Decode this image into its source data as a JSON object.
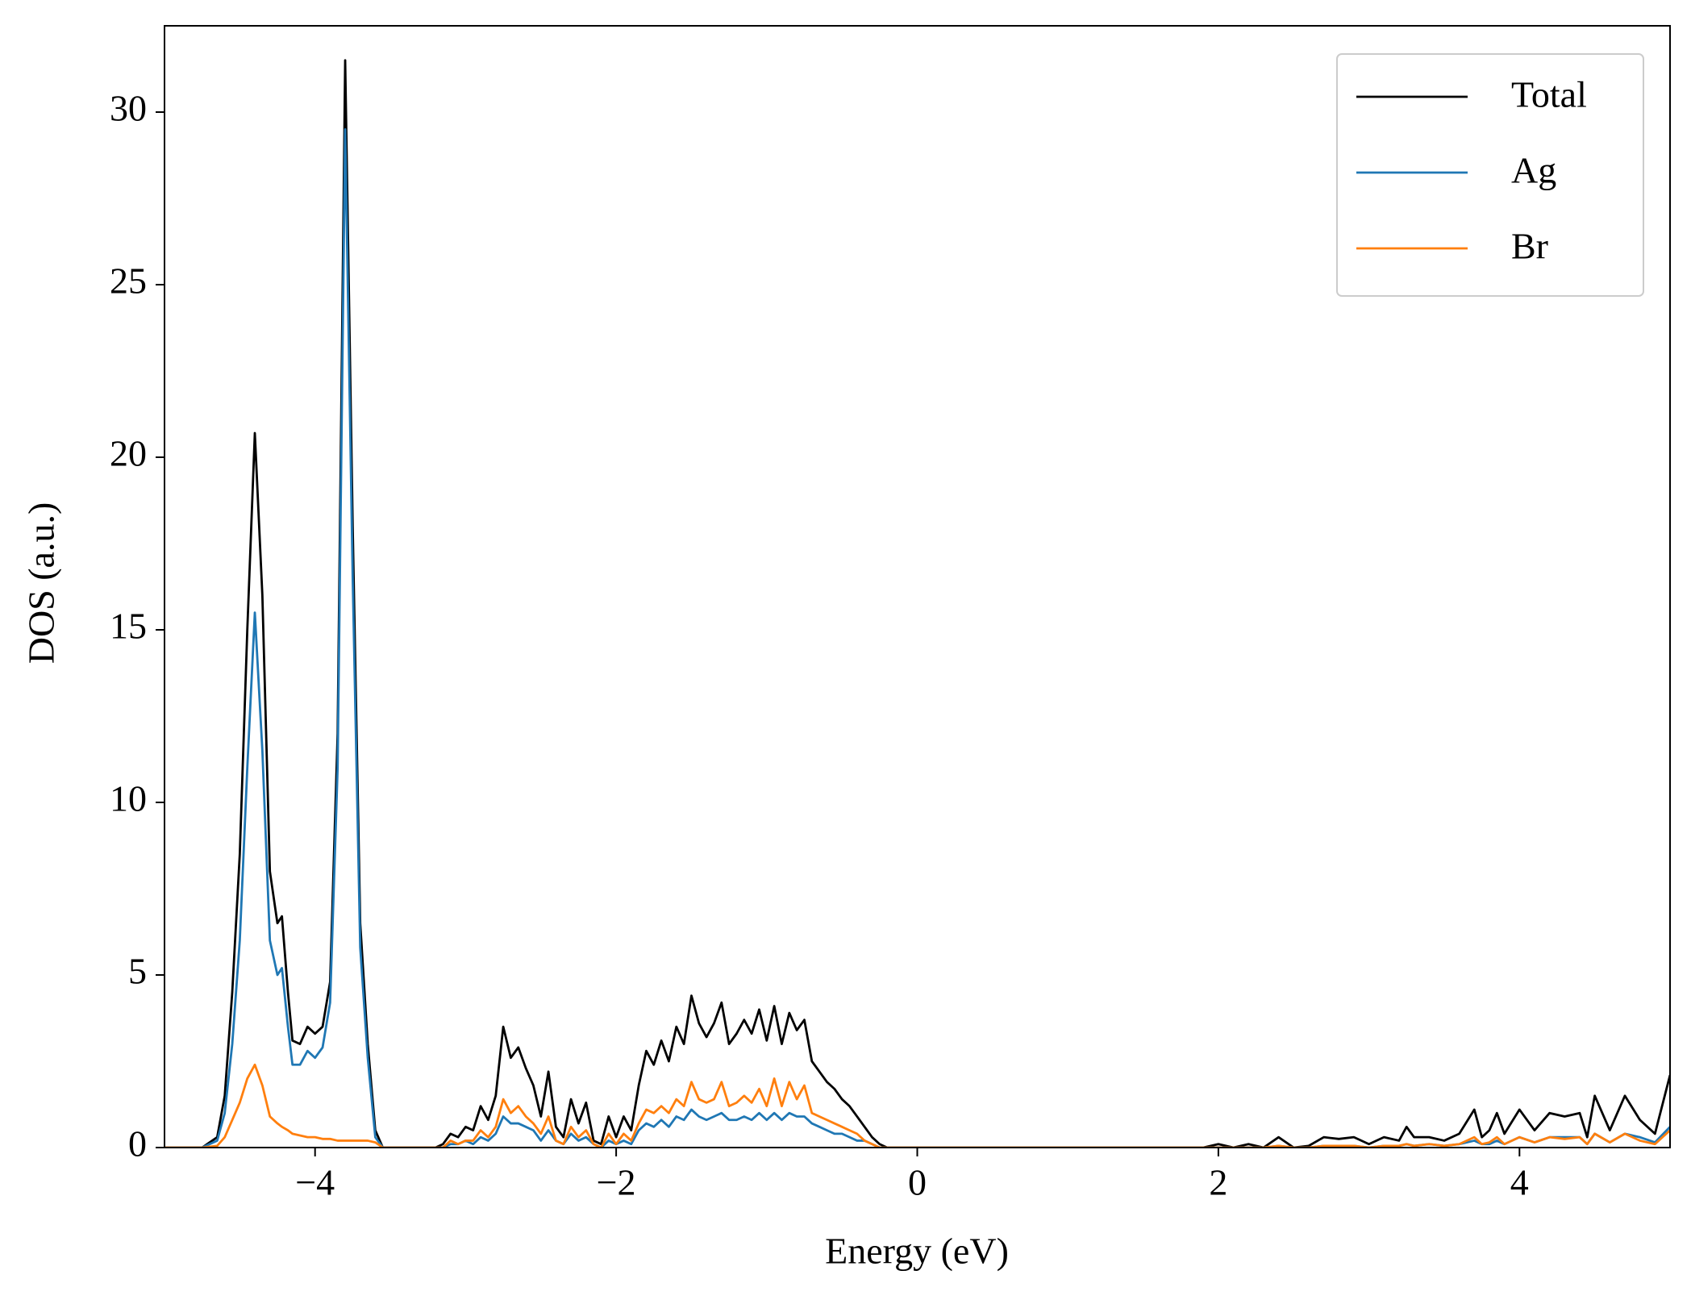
{
  "chart_data": {
    "type": "line",
    "xlabel": "Energy (eV)",
    "ylabel": "DOS (a.u.)",
    "legend": "upper right",
    "xlim": [
      -5,
      5
    ],
    "ylim": [
      0,
      32.5
    ],
    "xticks": [
      {
        "value": -4,
        "label": "−4"
      },
      {
        "value": -2,
        "label": "−2"
      },
      0,
      2,
      4
    ],
    "yticks": [
      0,
      5,
      10,
      15,
      20,
      25,
      30
    ],
    "x": [
      -5,
      -4.75,
      -4.65,
      -4.6,
      -4.55,
      -4.5,
      -4.45,
      -4.4,
      -4.35,
      -4.3,
      -4.25,
      -4.22,
      -4.18,
      -4.15,
      -4.1,
      -4.05,
      -4.0,
      -3.95,
      -3.9,
      -3.85,
      -3.8,
      -3.75,
      -3.7,
      -3.65,
      -3.6,
      -3.55,
      -3.2,
      -3.15,
      -3.1,
      -3.05,
      -3.0,
      -2.95,
      -2.9,
      -2.85,
      -2.8,
      -2.75,
      -2.7,
      -2.65,
      -2.6,
      -2.55,
      -2.5,
      -2.45,
      -2.4,
      -2.35,
      -2.3,
      -2.25,
      -2.2,
      -2.15,
      -2.1,
      -2.05,
      -2.0,
      -1.95,
      -1.9,
      -1.85,
      -1.8,
      -1.75,
      -1.7,
      -1.65,
      -1.6,
      -1.55,
      -1.5,
      -1.45,
      -1.4,
      -1.35,
      -1.3,
      -1.25,
      -1.2,
      -1.15,
      -1.1,
      -1.05,
      -1.0,
      -0.95,
      -0.9,
      -0.85,
      -0.8,
      -0.75,
      -0.7,
      -0.65,
      -0.6,
      -0.55,
      -0.5,
      -0.45,
      -0.4,
      -0.35,
      -0.3,
      -0.25,
      -0.2,
      0,
      1.9,
      2.0,
      2.1,
      2.2,
      2.3,
      2.4,
      2.5,
      2.6,
      2.7,
      2.8,
      2.9,
      3.0,
      3.1,
      3.2,
      3.25,
      3.3,
      3.4,
      3.5,
      3.6,
      3.7,
      3.75,
      3.8,
      3.85,
      3.9,
      4.0,
      4.1,
      4.2,
      4.3,
      4.4,
      4.45,
      4.5,
      4.6,
      4.7,
      4.8,
      4.9,
      5.0
    ],
    "series": [
      {
        "name": "Total",
        "color": "#000000",
        "values": [
          0,
          0,
          0.3,
          1.5,
          4.5,
          8.5,
          15,
          20.7,
          16,
          8,
          6.5,
          6.7,
          4.5,
          3.1,
          3.0,
          3.5,
          3.3,
          3.5,
          4.8,
          12,
          31.5,
          18,
          6.5,
          3.0,
          0.5,
          0,
          0,
          0.1,
          0.4,
          0.3,
          0.6,
          0.5,
          1.2,
          0.8,
          1.5,
          3.5,
          2.6,
          2.9,
          2.3,
          1.8,
          0.9,
          2.2,
          0.6,
          0.3,
          1.4,
          0.7,
          1.3,
          0.2,
          0.1,
          0.9,
          0.3,
          0.9,
          0.5,
          1.8,
          2.8,
          2.4,
          3.1,
          2.5,
          3.5,
          3.0,
          4.4,
          3.6,
          3.2,
          3.6,
          4.2,
          3.0,
          3.3,
          3.7,
          3.3,
          4.0,
          3.1,
          4.1,
          3.0,
          3.9,
          3.4,
          3.7,
          2.5,
          2.2,
          1.9,
          1.7,
          1.4,
          1.2,
          0.9,
          0.6,
          0.3,
          0.1,
          0,
          0,
          0,
          0.1,
          0,
          0.1,
          0,
          0.3,
          0,
          0.05,
          0.3,
          0.25,
          0.3,
          0.1,
          0.3,
          0.2,
          0.6,
          0.3,
          0.3,
          0.2,
          0.4,
          1.1,
          0.3,
          0.5,
          1.0,
          0.4,
          1.1,
          0.5,
          1.0,
          0.9,
          1.0,
          0.3,
          1.5,
          0.5,
          1.5,
          0.8,
          0.4,
          2.1
        ]
      },
      {
        "name": "Ag",
        "color": "#1f77b4",
        "values": [
          0,
          0,
          0.2,
          1.0,
          3.0,
          6.0,
          11,
          15.5,
          11.5,
          6.0,
          5.0,
          5.2,
          3.5,
          2.4,
          2.4,
          2.8,
          2.6,
          2.9,
          4.2,
          11,
          29.5,
          16.5,
          5.8,
          2.6,
          0.3,
          0,
          0,
          0,
          0.1,
          0.1,
          0.2,
          0.1,
          0.3,
          0.2,
          0.4,
          0.9,
          0.7,
          0.7,
          0.6,
          0.5,
          0.2,
          0.5,
          0.2,
          0.1,
          0.4,
          0.2,
          0.3,
          0.1,
          0,
          0.2,
          0.1,
          0.2,
          0.1,
          0.5,
          0.7,
          0.6,
          0.8,
          0.6,
          0.9,
          0.8,
          1.1,
          0.9,
          0.8,
          0.9,
          1.0,
          0.8,
          0.8,
          0.9,
          0.8,
          1.0,
          0.8,
          1.0,
          0.8,
          1.0,
          0.9,
          0.9,
          0.7,
          0.6,
          0.5,
          0.4,
          0.4,
          0.3,
          0.2,
          0.2,
          0.1,
          0,
          0,
          0,
          0,
          0,
          0,
          0,
          0,
          0.05,
          0,
          0,
          0.05,
          0.05,
          0.05,
          0,
          0.05,
          0.05,
          0.1,
          0.05,
          0.1,
          0.05,
          0.1,
          0.2,
          0.1,
          0.1,
          0.2,
          0.1,
          0.3,
          0.15,
          0.3,
          0.3,
          0.3,
          0.1,
          0.4,
          0.15,
          0.4,
          0.3,
          0.15,
          0.6
        ]
      },
      {
        "name": "Br",
        "color": "#ff7f0e",
        "values": [
          0,
          0,
          0.05,
          0.3,
          0.8,
          1.3,
          2.0,
          2.4,
          1.8,
          0.9,
          0.7,
          0.6,
          0.5,
          0.4,
          0.35,
          0.3,
          0.3,
          0.25,
          0.25,
          0.2,
          0.2,
          0.2,
          0.2,
          0.2,
          0.15,
          0,
          0,
          0,
          0.2,
          0.1,
          0.2,
          0.2,
          0.5,
          0.3,
          0.6,
          1.4,
          1.0,
          1.2,
          0.9,
          0.7,
          0.4,
          0.9,
          0.2,
          0.1,
          0.6,
          0.3,
          0.5,
          0.1,
          0,
          0.4,
          0.1,
          0.4,
          0.2,
          0.7,
          1.1,
          1.0,
          1.2,
          1.0,
          1.4,
          1.2,
          1.9,
          1.4,
          1.3,
          1.4,
          1.9,
          1.2,
          1.3,
          1.5,
          1.3,
          1.7,
          1.2,
          2.0,
          1.2,
          1.9,
          1.4,
          1.8,
          1.0,
          0.9,
          0.8,
          0.7,
          0.6,
          0.5,
          0.4,
          0.2,
          0.1,
          0,
          0,
          0,
          0,
          0,
          0,
          0,
          0,
          0.05,
          0,
          0,
          0.05,
          0.05,
          0.05,
          0,
          0.05,
          0.05,
          0.1,
          0.05,
          0.1,
          0.05,
          0.1,
          0.3,
          0.1,
          0.15,
          0.3,
          0.1,
          0.3,
          0.15,
          0.3,
          0.25,
          0.3,
          0.1,
          0.4,
          0.15,
          0.4,
          0.2,
          0.1,
          0.5
        ]
      }
    ]
  }
}
